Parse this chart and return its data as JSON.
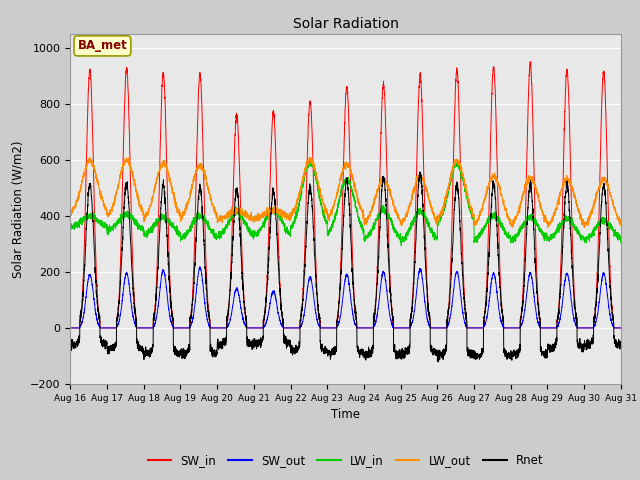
{
  "title": "Solar Radiation",
  "xlabel": "Time",
  "ylabel": "Solar Radiation (W/m2)",
  "ylim": [
    -200,
    1050
  ],
  "yticks": [
    -200,
    0,
    200,
    400,
    600,
    800,
    1000
  ],
  "xtick_labels": [
    "Aug 16",
    "Aug 17",
    "Aug 18",
    "Aug 19",
    "Aug 20",
    "Aug 21",
    "Aug 22",
    "Aug 23",
    "Aug 24",
    "Aug 25",
    "Aug 26",
    "Aug 27",
    "Aug 28",
    "Aug 29",
    "Aug 30",
    "Aug 31"
  ],
  "series": {
    "SW_in": {
      "color": "#ff0000",
      "label": "SW_in"
    },
    "SW_out": {
      "color": "#0000ff",
      "label": "SW_out"
    },
    "LW_in": {
      "color": "#00cc00",
      "label": "LW_in"
    },
    "LW_out": {
      "color": "#ff8c00",
      "label": "LW_out"
    },
    "Rnet": {
      "color": "#000000",
      "label": "Rnet"
    }
  },
  "annotation_text": "BA_met",
  "annotation_box_facecolor": "#ffffcc",
  "annotation_box_edgecolor": "#999900",
  "annotation_text_color": "#880000",
  "fig_facecolor": "#cccccc",
  "axes_facecolor": "#e8e8e8",
  "grid_color": "#ffffff",
  "n_days": 15,
  "ppd": 288,
  "SW_in_peaks": [
    920,
    925,
    910,
    905,
    760,
    770,
    810,
    860,
    870,
    900,
    920,
    930,
    940,
    920,
    915
  ],
  "SW_out_peaks": [
    190,
    195,
    205,
    215,
    140,
    130,
    180,
    190,
    200,
    210,
    200,
    195,
    195,
    195,
    195
  ],
  "LW_in_day": [
    400,
    405,
    395,
    400,
    415,
    420,
    590,
    530,
    420,
    415,
    585,
    400,
    395,
    390,
    385
  ],
  "LW_in_night": [
    355,
    345,
    330,
    315,
    320,
    325,
    345,
    325,
    310,
    305,
    360,
    310,
    310,
    310,
    310
  ],
  "LW_out_day": [
    595,
    598,
    588,
    580,
    420,
    420,
    600,
    585,
    530,
    540,
    595,
    540,
    535,
    530,
    530
  ],
  "LW_out_night": [
    395,
    385,
    380,
    380,
    385,
    390,
    390,
    380,
    365,
    360,
    380,
    360,
    355,
    355,
    355
  ],
  "Rnet_peaks": [
    510,
    515,
    510,
    500,
    490,
    485,
    500,
    530,
    535,
    550,
    510,
    510,
    510,
    510,
    510
  ],
  "Rnet_night": [
    -60,
    -75,
    -90,
    -90,
    -60,
    -55,
    -80,
    -90,
    -95,
    -90,
    -95,
    -100,
    -95,
    -70,
    -60
  ]
}
